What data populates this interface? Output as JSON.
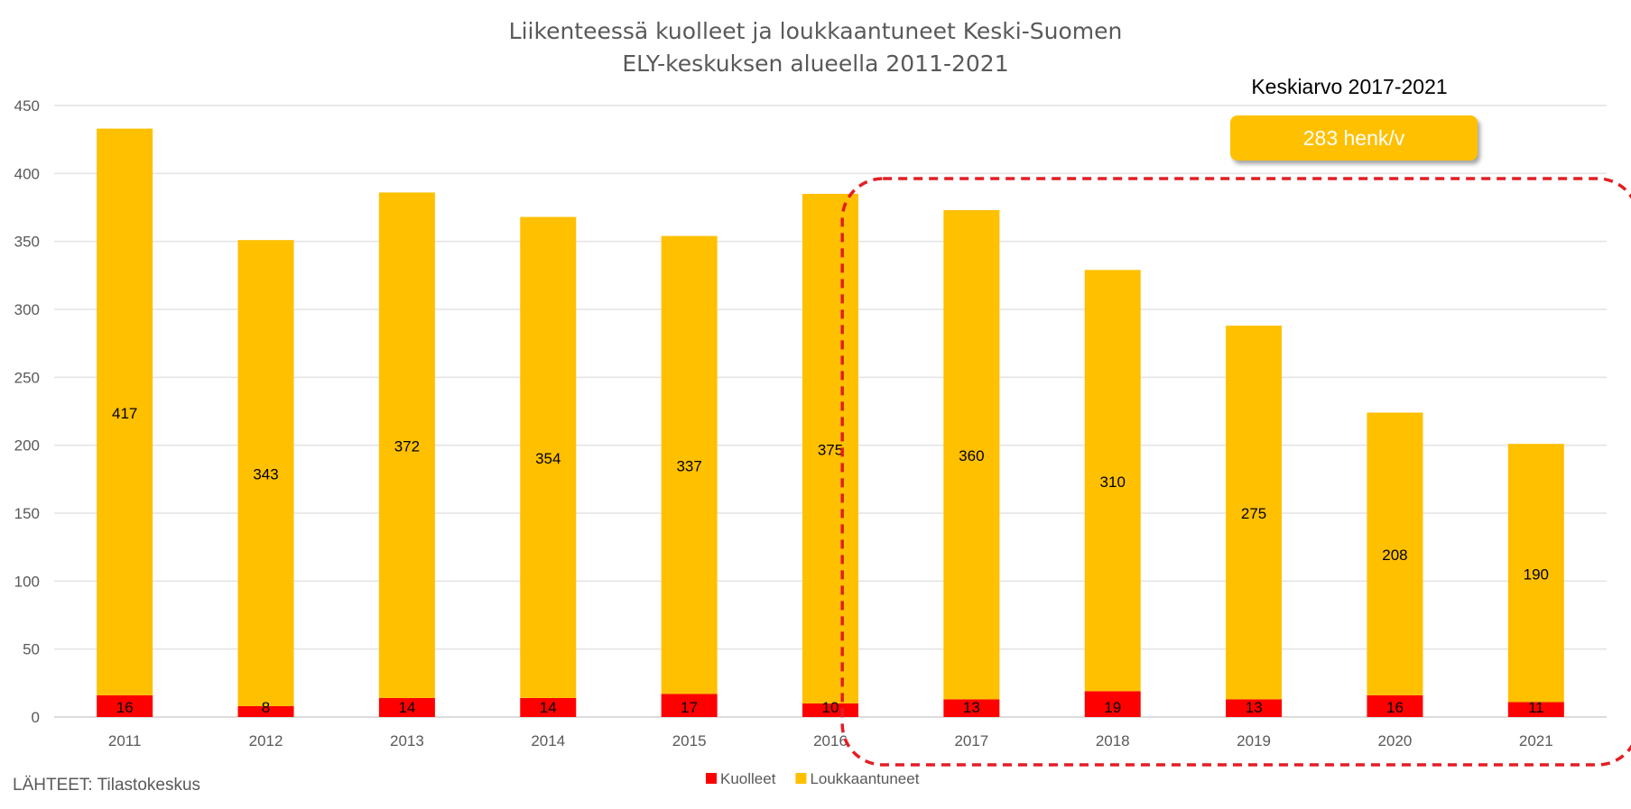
{
  "title_lines": [
    "Liikenteessä kuolleet ja loukkaantuneet Keski-Suomen",
    "ELY-keskuksen alueella 2011-2021"
  ],
  "source": "LÄHTEET: Tilastokeskus",
  "highlight": {
    "label": "Keskiarvo 2017-2021",
    "value_text": "283 henk/v",
    "range": [
      "2017",
      "2021"
    ],
    "border_color": "#e31e24"
  },
  "chart_data": {
    "type": "bar",
    "stacked": true,
    "title": "Liikenteessä kuolleet ja loukkaantuneet Keski-Suomen ELY-keskuksen alueella 2011-2021",
    "categories": [
      "2011",
      "2012",
      "2013",
      "2014",
      "2015",
      "2016",
      "2017",
      "2018",
      "2019",
      "2020",
      "2021"
    ],
    "series": [
      {
        "name": "Kuolleet",
        "color": "#ff0000",
        "values": [
          16,
          8,
          14,
          14,
          17,
          10,
          13,
          19,
          13,
          16,
          11
        ]
      },
      {
        "name": "Loukkaantuneet",
        "color": "#ffc000",
        "values": [
          417,
          343,
          372,
          354,
          337,
          375,
          360,
          310,
          275,
          208,
          190
        ]
      }
    ],
    "ylim": [
      0,
      450
    ],
    "yticks": [
      0,
      50,
      100,
      150,
      200,
      250,
      300,
      350,
      400,
      450
    ],
    "xlabel": "",
    "ylabel": "",
    "grid": true,
    "legend": "bottom"
  }
}
